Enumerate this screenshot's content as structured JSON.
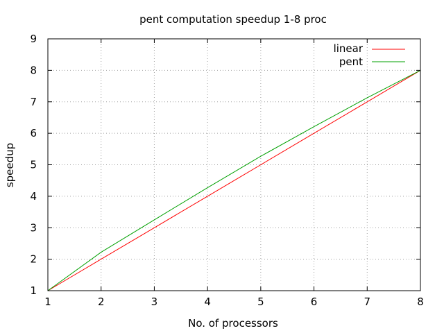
{
  "chart_data": {
    "type": "line",
    "title": "pent computation speedup 1-8 proc",
    "xlabel": "No. of processors",
    "ylabel": "speedup",
    "xlim": [
      1,
      8
    ],
    "ylim": [
      1,
      9
    ],
    "xticks": [
      "1",
      "2",
      "3",
      "4",
      "5",
      "6",
      "7",
      "8"
    ],
    "yticks": [
      "1",
      "2",
      "3",
      "4",
      "5",
      "6",
      "7",
      "8",
      "9"
    ],
    "grid": true,
    "legend_position": "top-right",
    "x": [
      1,
      2,
      3,
      4,
      5,
      6,
      7,
      8
    ],
    "series": [
      {
        "name": "linear",
        "color": "#ff0000",
        "values": [
          1,
          2,
          3,
          4,
          5,
          6,
          7,
          8
        ]
      },
      {
        "name": "pent",
        "color": "#00a000",
        "values": [
          1,
          2.22,
          3.25,
          4.27,
          5.27,
          6.21,
          7.13,
          8.0
        ]
      }
    ]
  }
}
